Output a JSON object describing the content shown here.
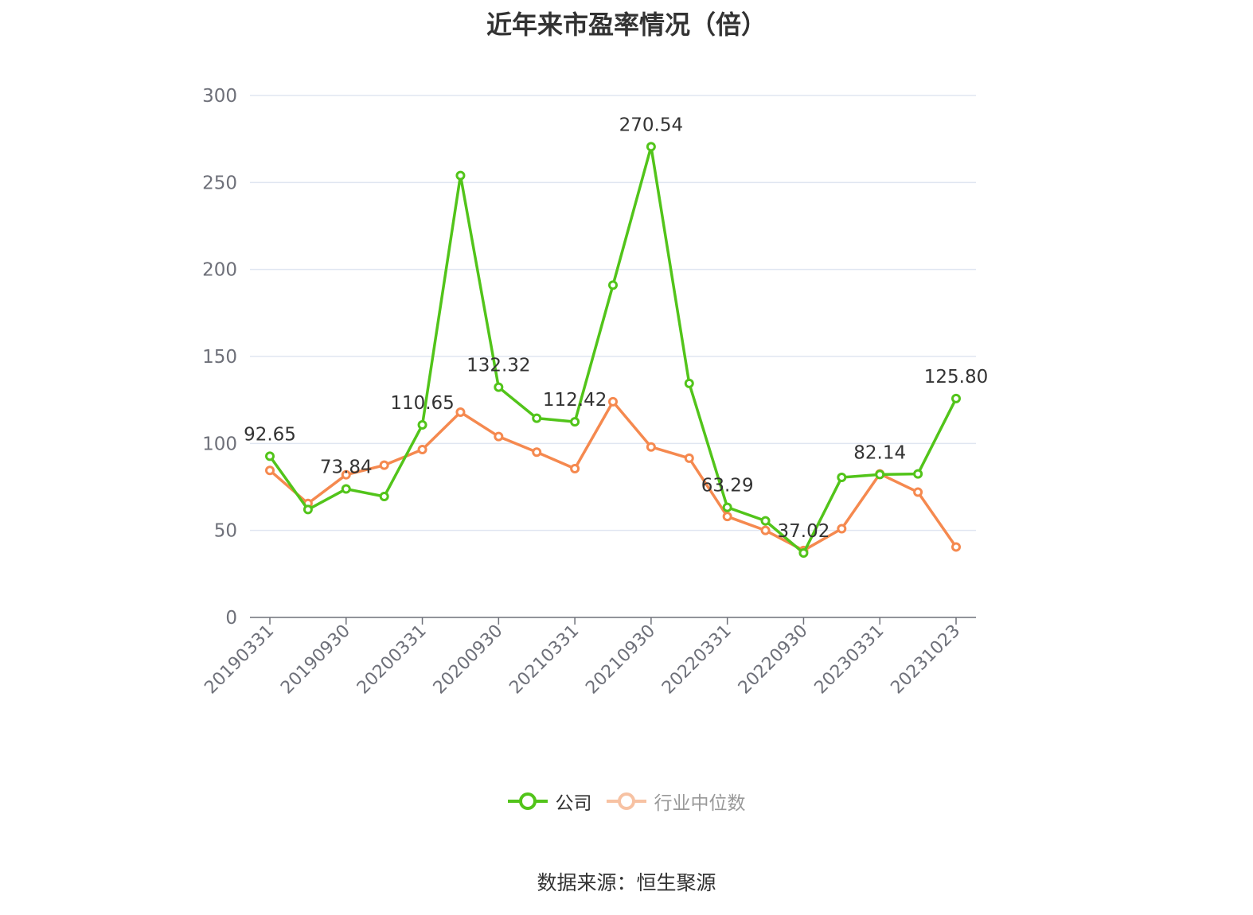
{
  "chart_data": {
    "type": "line",
    "title": "近年来市盈率情况（倍）",
    "xlabel": "",
    "ylabel": "",
    "ylim": [
      0,
      300
    ],
    "yticks": [
      0,
      50,
      100,
      150,
      200,
      250,
      300
    ],
    "grid": true,
    "legend_position": "bottom",
    "x": [
      "20190331",
      "20190630",
      "20190930",
      "20191231",
      "20200331",
      "20200630",
      "20200930",
      "20201231",
      "20210331",
      "20210630",
      "20210930",
      "20211231",
      "20220331",
      "20220630",
      "20220930",
      "20221231",
      "20230331",
      "20230630",
      "20231023"
    ],
    "x_tick_labels": [
      "20190331",
      "20190930",
      "20200331",
      "20200930",
      "20210331",
      "20210930",
      "20220331",
      "20220930",
      "20230331",
      "20231023"
    ],
    "series": [
      {
        "name": "公司",
        "color": "#52c41a",
        "values": [
          92.65,
          62,
          73.84,
          69.5,
          110.65,
          254,
          132.32,
          114.5,
          112.42,
          191,
          270.54,
          134.5,
          63.29,
          55.5,
          37.02,
          80.5,
          82.14,
          82.5,
          125.8
        ],
        "labels": {
          "0": "92.65",
          "2": "73.84",
          "4": "110.65",
          "6": "132.32",
          "8": "112.42",
          "10": "270.54",
          "12": "63.29",
          "14": "37.02",
          "16": "82.14",
          "18": "125.80"
        }
      },
      {
        "name": "行业中位数",
        "color": "#f5894f",
        "values": [
          84.5,
          65.5,
          82,
          87.5,
          96.5,
          118,
          104,
          95,
          85.5,
          124,
          98,
          91.5,
          58,
          50,
          38.5,
          51,
          82.5,
          72,
          40.5
        ]
      }
    ],
    "source": "数据来源：恒生聚源"
  }
}
